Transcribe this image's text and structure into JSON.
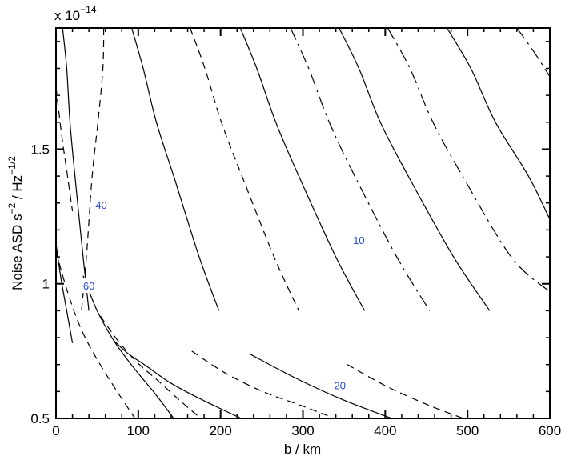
{
  "chart_data": {
    "type": "line",
    "title": "",
    "xlabel": "b / km",
    "ylabel_parts": {
      "prefix": "Noise ASD s",
      "exp1": "−2",
      "mid": " / Hz",
      "exp2": "−1/2"
    },
    "ylabel": "Noise ASD s^-2 / Hz^-1/2",
    "y_multiplier": {
      "base": "x 10",
      "exponent": "−14"
    },
    "xlim": [
      0,
      600
    ],
    "ylim": [
      0.5,
      1.95
    ],
    "x_ticks": [
      {
        "value": 0,
        "label": "0"
      },
      {
        "value": 100,
        "label": "100"
      },
      {
        "value": 200,
        "label": "200"
      },
      {
        "value": 300,
        "label": "300"
      },
      {
        "value": 400,
        "label": "400"
      },
      {
        "value": 500,
        "label": "500"
      },
      {
        "value": 600,
        "label": "600"
      }
    ],
    "y_ticks": [
      {
        "value": 0.5,
        "label": "0.5"
      },
      {
        "value": 1.0,
        "label": "1"
      },
      {
        "value": 1.5,
        "label": "1.5"
      }
    ],
    "grid": false,
    "line_color": "#000000",
    "label_color": "#2a4bd7",
    "contours": [
      {
        "x": [
          8,
          13,
          17,
          23,
          33,
          40
        ],
        "y": [
          1.95,
          1.8,
          1.6,
          1.4,
          1.1,
          0.9
        ],
        "style": "solid"
      },
      {
        "x": [
          58,
          57,
          51,
          44,
          37,
          31
        ],
        "y": [
          1.95,
          1.8,
          1.6,
          1.4,
          1.1,
          0.9
        ],
        "style": "dashed"
      },
      {
        "x": [
          92,
          106,
          122,
          143,
          174,
          198
        ],
        "y": [
          1.95,
          1.8,
          1.6,
          1.4,
          1.1,
          0.9
        ],
        "style": "solid"
      },
      {
        "x": [
          163,
          181,
          201,
          226,
          265,
          295
        ],
        "y": [
          1.95,
          1.8,
          1.6,
          1.4,
          1.1,
          0.9
        ],
        "style": "dashed"
      },
      {
        "x": [
          224,
          244,
          267,
          295,
          340,
          375
        ],
        "y": [
          1.95,
          1.8,
          1.6,
          1.4,
          1.1,
          0.9
        ],
        "style": "solid"
      },
      {
        "x": [
          285,
          307,
          332,
          363,
          414,
          454
        ],
        "y": [
          1.95,
          1.8,
          1.6,
          1.4,
          1.1,
          0.9
        ],
        "style": "longdash"
      },
      {
        "x": [
          344,
          368,
          394,
          428,
          483,
          527
        ],
        "y": [
          1.95,
          1.8,
          1.6,
          1.4,
          1.1,
          0.9
        ],
        "style": "solid"
      },
      {
        "x": [
          403,
          430,
          458,
          494,
          553,
          600
        ],
        "y": [
          1.95,
          1.8,
          1.6,
          1.4,
          1.1,
          0.97
        ],
        "style": "longdash"
      },
      {
        "x": [
          475,
          504,
          534,
          574,
          600
        ],
        "y": [
          1.95,
          1.8,
          1.6,
          1.4,
          1.24
        ],
        "style": "solid"
      },
      {
        "x": [
          560,
          581,
          600
        ],
        "y": [
          1.95,
          1.86,
          1.77
        ],
        "style": "longdash"
      },
      {
        "x": [
          0,
          7,
          14,
          20
        ],
        "y": [
          1.73,
          1.55,
          1.4,
          1.27
        ],
        "style": "dashed"
      },
      {
        "x": [
          0,
          6,
          13,
          20
        ],
        "y": [
          1.15,
          1.02,
          0.9,
          0.78
        ],
        "style": "solid"
      },
      {
        "x": [
          0,
          13,
          28,
          46,
          70,
          96
        ],
        "y": [
          1.12,
          0.98,
          0.85,
          0.74,
          0.62,
          0.5
        ],
        "style": "dashed"
      },
      {
        "x": [
          33,
          50,
          70,
          94,
          121,
          143
        ],
        "y": [
          1.03,
          0.9,
          0.79,
          0.69,
          0.59,
          0.5
        ],
        "style": "solid"
      },
      {
        "x": [
          54,
          75,
          98,
          124,
          153,
          176
        ],
        "y": [
          0.88,
          0.79,
          0.71,
          0.64,
          0.56,
          0.5
        ],
        "style": "dashed"
      },
      {
        "x": [
          70,
          88,
          112,
          140,
          177,
          225
        ],
        "y": [
          0.79,
          0.74,
          0.69,
          0.63,
          0.57,
          0.5
        ],
        "style": "solid"
      },
      {
        "x": [
          165,
          205,
          251,
          296,
          330
        ],
        "y": [
          0.75,
          0.67,
          0.6,
          0.55,
          0.51
        ],
        "style": "dashed"
      },
      {
        "x": [
          235,
          291,
          348,
          408
        ],
        "y": [
          0.74,
          0.65,
          0.57,
          0.5
        ],
        "style": "solid"
      },
      {
        "x": [
          354,
          401,
          452,
          495
        ],
        "y": [
          0.7,
          0.62,
          0.55,
          0.5
        ],
        "style": "dashed"
      }
    ],
    "contour_labels": [
      {
        "text": "40",
        "x": 55,
        "y": 1.29
      },
      {
        "text": "60",
        "x": 40,
        "y": 0.99
      },
      {
        "text": "10",
        "x": 368,
        "y": 1.16
      },
      {
        "text": "20",
        "x": 345,
        "y": 0.62
      }
    ]
  }
}
